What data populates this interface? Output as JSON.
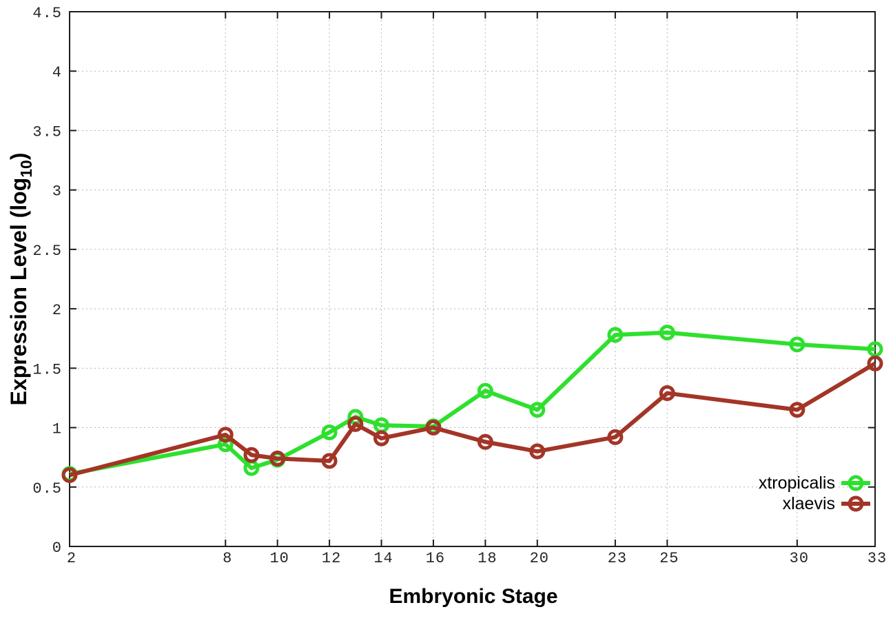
{
  "chart_data": {
    "type": "line",
    "title": "",
    "xlabel": "Embryonic Stage",
    "ylabel": "Expression Level (log10)",
    "ylabel_parts": {
      "main": "Expression Level (log",
      "sub": "10",
      "suffix": ")"
    },
    "x": [
      2,
      8,
      9,
      10,
      12,
      13,
      14,
      16,
      18,
      20,
      23,
      25,
      30,
      33
    ],
    "xlim": [
      2,
      33
    ],
    "ylim": [
      0,
      4.5
    ],
    "xticks": [
      2,
      8,
      10,
      12,
      14,
      16,
      18,
      20,
      23,
      25,
      30,
      33
    ],
    "xtick_labels": [
      "2",
      "8",
      "10",
      "12",
      "14",
      "16",
      "18",
      "20",
      "23",
      "25",
      "30",
      "33"
    ],
    "yticks": [
      0,
      0.5,
      1,
      1.5,
      2,
      2.5,
      3,
      3.5,
      4,
      4.5
    ],
    "ytick_labels": [
      "0",
      "0.5",
      "1",
      "1.5",
      "2",
      "2.5",
      "3",
      "3.5",
      "4",
      "4.5"
    ],
    "grid": true,
    "marker": "open-circle",
    "legend_position": "bottom-right-inside",
    "series": [
      {
        "name": "xtropicalis",
        "color": "#2ee02e",
        "values": [
          0.61,
          0.86,
          0.66,
          0.73,
          0.96,
          1.09,
          1.02,
          1.01,
          1.31,
          1.15,
          1.78,
          1.8,
          1.7,
          1.66
        ]
      },
      {
        "name": "xlaevis",
        "color": "#a33527",
        "values": [
          0.6,
          0.94,
          0.77,
          0.74,
          0.72,
          1.03,
          0.91,
          1.0,
          0.88,
          0.8,
          0.92,
          1.29,
          1.15,
          1.54
        ]
      }
    ],
    "style": {
      "background": "#ffffff",
      "border_color": "#1c1c1c",
      "grid_color": "#b3b3b3",
      "tick_label_color": "#262626",
      "axis_label_color": "#000000",
      "legend_text_color": "#000000"
    }
  }
}
